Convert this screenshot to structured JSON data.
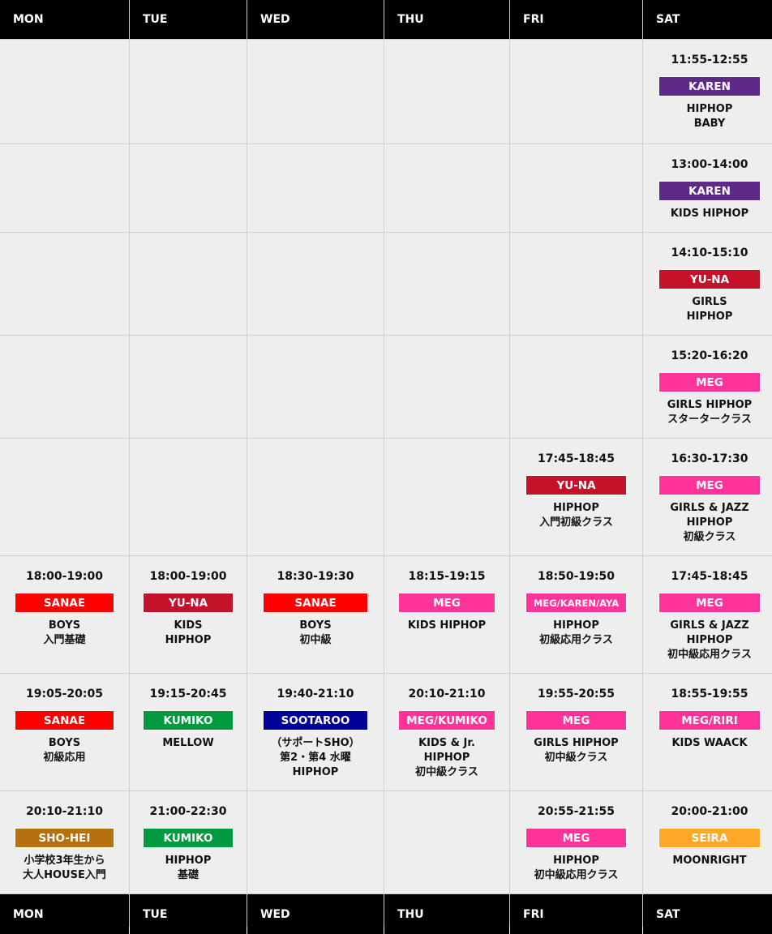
{
  "days": [
    "MON",
    "TUE",
    "WED",
    "THU",
    "FRI",
    "SAT"
  ],
  "colors": {
    "karen": "#5d2a87",
    "yuna": "#c4122a",
    "meg": "#ff3399",
    "sanae": "#ff0000",
    "kumiko": "#009a3e",
    "sootaroo": "#000099",
    "shohei": "#b5700f",
    "seira": "#ffa726"
  },
  "rows": [
    [
      null,
      null,
      null,
      null,
      null,
      {
        "time": "11:55-12:55",
        "instructor": "KAREN",
        "color": "karen",
        "lines": [
          "HIPHOP",
          "BABY"
        ]
      }
    ],
    [
      null,
      null,
      null,
      null,
      null,
      {
        "time": "13:00-14:00",
        "instructor": "KAREN",
        "color": "karen",
        "lines": [
          "KIDS HIPHOP"
        ]
      }
    ],
    [
      null,
      null,
      null,
      null,
      null,
      {
        "time": "14:10-15:10",
        "instructor": "YU-NA",
        "color": "yuna",
        "lines": [
          "GIRLS",
          "HIPHOP"
        ]
      }
    ],
    [
      null,
      null,
      null,
      null,
      null,
      {
        "time": "15:20-16:20",
        "instructor": "MEG",
        "color": "meg",
        "lines": [
          "GIRLS HIPHOP",
          "スタータークラス"
        ]
      }
    ],
    [
      null,
      null,
      null,
      null,
      {
        "time": "17:45-18:45",
        "instructor": "YU-NA",
        "color": "yuna",
        "lines": [
          "HIPHOP",
          "入門初級クラス"
        ]
      },
      {
        "time": "16:30-17:30",
        "instructor": "MEG",
        "color": "meg",
        "lines": [
          "GIRLS & JAZZ",
          "HIPHOP",
          "初級クラス"
        ]
      }
    ],
    [
      {
        "time": "18:00-19:00",
        "instructor": "SANAE",
        "color": "sanae",
        "lines": [
          "BOYS",
          "入門基礎"
        ]
      },
      {
        "time": "18:00-19:00",
        "instructor": "YU-NA",
        "color": "yuna",
        "lines": [
          "KIDS",
          "HIPHOP"
        ]
      },
      {
        "time": "18:30-19:30",
        "instructor": "SANAE",
        "color": "sanae",
        "lines": [
          "BOYS",
          "初中級"
        ]
      },
      {
        "time": "18:15-19:15",
        "instructor": "MEG",
        "color": "meg",
        "lines": [
          "KIDS HIPHOP"
        ]
      },
      {
        "time": "18:50-19:50",
        "instructor": "MEG/KAREN/AYA",
        "color": "meg",
        "lines": [
          "HIPHOP",
          "初級応用クラス"
        ]
      },
      {
        "time": "17:45-18:45",
        "instructor": "MEG",
        "color": "meg",
        "lines": [
          "GIRLS & JAZZ",
          "HIPHOP",
          "初中級応用クラス"
        ]
      }
    ],
    [
      {
        "time": "19:05-20:05",
        "instructor": "SANAE",
        "color": "sanae",
        "lines": [
          "BOYS",
          "初級応用"
        ]
      },
      {
        "time": "19:15-20:45",
        "instructor": "KUMIKO",
        "color": "kumiko",
        "lines": [
          "MELLOW"
        ]
      },
      {
        "time": "19:40-21:10",
        "instructor": "SOOTAROO",
        "color": "sootaroo",
        "lines": [
          "（サポートSHO）",
          "第2・第4 水曜",
          "HIPHOP"
        ]
      },
      {
        "time": "20:10-21:10",
        "instructor": "MEG/KUMIKO",
        "color": "meg",
        "lines": [
          "KIDS & Jr.",
          "HIPHOP",
          "初中級クラス"
        ]
      },
      {
        "time": "19:55-20:55",
        "instructor": "MEG",
        "color": "meg",
        "lines": [
          "GIRLS HIPHOP",
          "初中級クラス"
        ]
      },
      {
        "time": "18:55-19:55",
        "instructor": "MEG/RIRI",
        "color": "meg",
        "lines": [
          "KIDS WAACK"
        ]
      }
    ],
    [
      {
        "time": "20:10-21:10",
        "instructor": "SHO-HEI",
        "color": "shohei",
        "lines": [
          "小学校3年生から",
          "大人HOUSE入門"
        ]
      },
      {
        "time": "21:00-22:30",
        "instructor": "KUMIKO",
        "color": "kumiko",
        "lines": [
          "HIPHOP",
          "基礎"
        ]
      },
      null,
      null,
      {
        "time": "20:55-21:55",
        "instructor": "MEG",
        "color": "meg",
        "lines": [
          "HIPHOP",
          "初中級応用クラス"
        ]
      },
      {
        "time": "20:00-21:00",
        "instructor": "SEIRA",
        "color": "seira",
        "lines": [
          "MOONRIGHT"
        ]
      }
    ]
  ]
}
